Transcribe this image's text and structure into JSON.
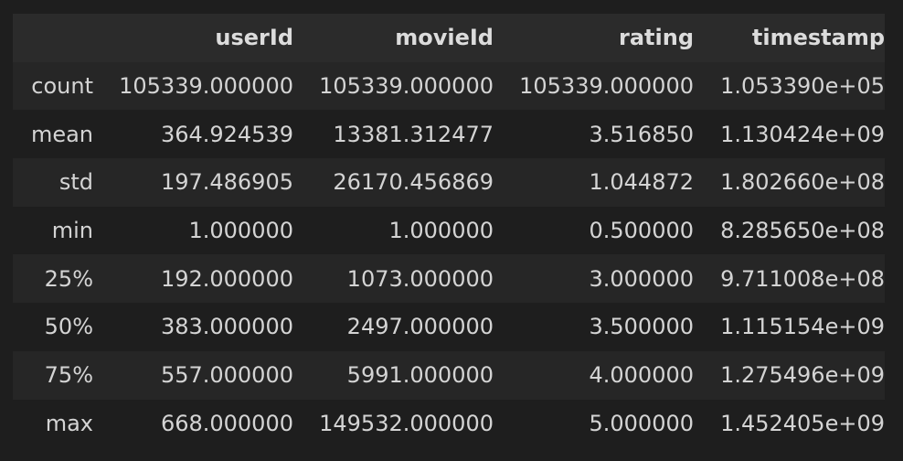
{
  "table": {
    "columns": [
      "",
      "userId",
      "movieId",
      "rating",
      "timestamp"
    ],
    "rows": [
      {
        "label": "count",
        "values": [
          "105339.000000",
          "105339.000000",
          "105339.000000",
          "1.053390e+05"
        ]
      },
      {
        "label": "mean",
        "values": [
          "364.924539",
          "13381.312477",
          "3.516850",
          "1.130424e+09"
        ]
      },
      {
        "label": "std",
        "values": [
          "197.486905",
          "26170.456869",
          "1.044872",
          "1.802660e+08"
        ]
      },
      {
        "label": "min",
        "values": [
          "1.000000",
          "1.000000",
          "0.500000",
          "8.285650e+08"
        ]
      },
      {
        "label": "25%",
        "values": [
          "192.000000",
          "1073.000000",
          "3.000000",
          "9.711008e+08"
        ]
      },
      {
        "label": "50%",
        "values": [
          "383.000000",
          "2497.000000",
          "3.500000",
          "1.115154e+09"
        ]
      },
      {
        "label": "75%",
        "values": [
          "557.000000",
          "5991.000000",
          "4.000000",
          "1.275496e+09"
        ]
      },
      {
        "label": "max",
        "values": [
          "668.000000",
          "149532.000000",
          "5.000000",
          "1.452405e+09"
        ]
      }
    ]
  }
}
